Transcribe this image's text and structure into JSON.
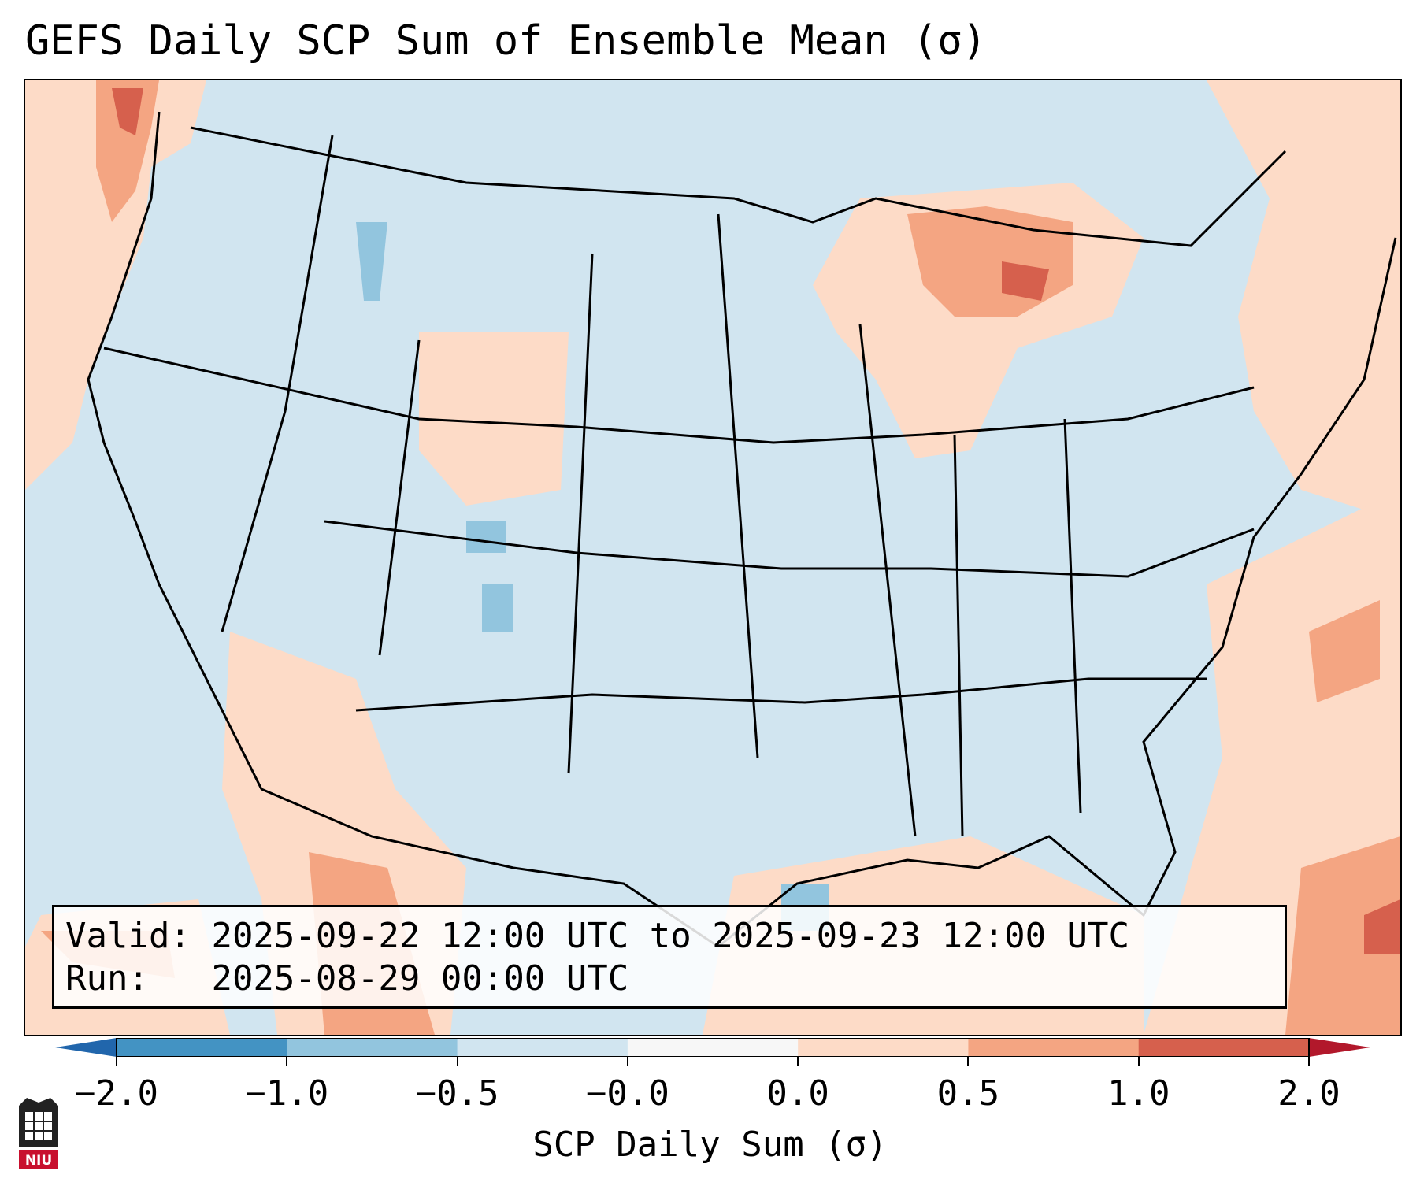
{
  "title": "GEFS Daily SCP Sum of Ensemble Mean (σ)",
  "info": {
    "valid_label": "Valid:",
    "valid_value": "2025-09-22 12:00 UTC to 2025-09-23 12:00 UTC",
    "run_label": "Run:",
    "run_value": "2025-08-29 00:00 UTC"
  },
  "colorbar": {
    "label": "SCP Daily Sum (σ)",
    "ticks": [
      "−2.0",
      "−1.0",
      "−0.5",
      "−0.0",
      "0.0",
      "0.5",
      "1.0",
      "2.0"
    ],
    "colors": [
      "#4393c3",
      "#92c5de",
      "#d1e5f0",
      "#f7f7f7",
      "#fddbc7",
      "#f4a582",
      "#d6604d"
    ],
    "extend_low_color": "#2166ac",
    "extend_high_color": "#b2182b"
  },
  "map": {
    "background_color": "#d1e5f0",
    "region": "Contiguous United States"
  },
  "logo": {
    "text": "NIU"
  }
}
